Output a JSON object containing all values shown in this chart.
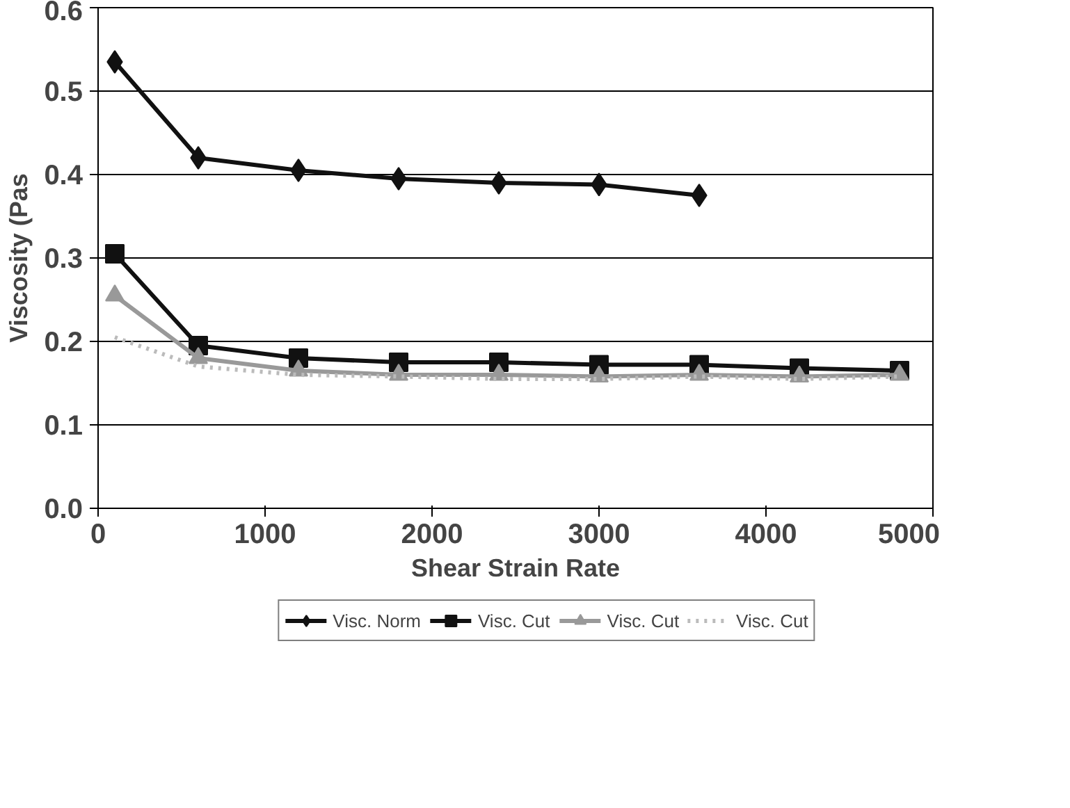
{
  "chart_data": {
    "type": "line",
    "xlabel": "Shear Strain Rate",
    "ylabel": "Viscosity (Pas",
    "x": [
      100,
      600,
      1200,
      1800,
      2400,
      3000,
      3600,
      4200,
      4800
    ],
    "xlim": [
      0,
      5000
    ],
    "xticks": [
      0,
      1000,
      2000,
      3000,
      4000,
      5000
    ],
    "ylim": [
      0,
      0.6
    ],
    "yticks": [
      {
        "value": 0,
        "label": "0.0"
      },
      0.1,
      0.2,
      0.3,
      0.4,
      0.5,
      0.6
    ],
    "grid": "y",
    "legend": "bottom",
    "series": [
      {
        "name": "Visc. Norm",
        "color": "#111111",
        "marker": "diamond",
        "line_style": "solid",
        "values": [
          0.535,
          0.42,
          0.405,
          0.395,
          0.39,
          0.388,
          0.375,
          null,
          null
        ]
      },
      {
        "name": "Visc. Cut",
        "color": "#111111",
        "marker": "square",
        "line_style": "solid",
        "values": [
          0.305,
          0.195,
          0.18,
          0.175,
          0.175,
          0.172,
          0.172,
          0.168,
          0.165
        ]
      },
      {
        "name": "Visc. Cut",
        "color": "#999999",
        "marker": "triangle",
        "line_style": "solid",
        "values": [
          0.255,
          0.18,
          0.165,
          0.16,
          0.16,
          0.158,
          0.16,
          0.158,
          0.16
        ]
      },
      {
        "name": "Visc. Cut",
        "color": "#bbbbbb",
        "marker": "none",
        "line_style": "dotted",
        "values": [
          0.205,
          0.17,
          0.16,
          0.158,
          0.155,
          0.155,
          0.158,
          0.155,
          0.158
        ]
      }
    ]
  }
}
